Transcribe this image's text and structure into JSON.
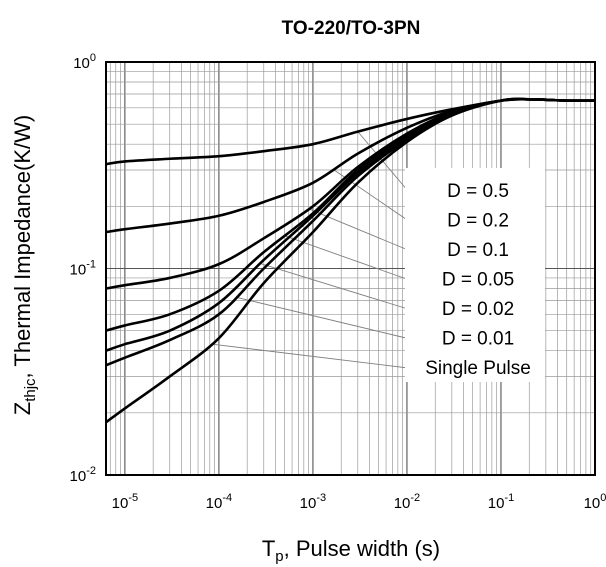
{
  "chart_data": {
    "type": "line",
    "title": "TO-220/TO-3PN",
    "ylabel": {
      "main": "Z",
      "sub": "thjc",
      "rest": ", Thermal Impedance(K/W)"
    },
    "xlabel": {
      "main": "T",
      "sub": "p",
      "rest": ", Pulse width (s)"
    },
    "x_scale": "log",
    "y_scale": "log",
    "xlim": [
      6.3e-06,
      1
    ],
    "ylim": [
      0.01,
      1
    ],
    "grid": true,
    "x_ticks": [
      {
        "value": 1e-05,
        "base": "10",
        "exp": "-5"
      },
      {
        "value": 0.0001,
        "base": "10",
        "exp": "-4"
      },
      {
        "value": 0.001,
        "base": "10",
        "exp": "-3"
      },
      {
        "value": 0.01,
        "base": "10",
        "exp": "-2"
      },
      {
        "value": 0.1,
        "base": "10",
        "exp": "-1"
      },
      {
        "value": 1,
        "base": "10",
        "exp": "0"
      }
    ],
    "y_ticks": [
      {
        "value": 0.01,
        "base": "10",
        "exp": "-2"
      },
      {
        "value": 0.1,
        "base": "10",
        "exp": "-1"
      },
      {
        "value": 1,
        "base": "10",
        "exp": "0"
      }
    ],
    "legend_placement": "right",
    "series": [
      {
        "name": "D = 0.5",
        "x": [
          6.3e-06,
          1e-05,
          3e-05,
          0.0001,
          0.0003,
          0.001,
          0.003,
          0.01,
          0.03,
          0.1,
          0.2,
          0.5,
          1
        ],
        "y": [
          0.32,
          0.33,
          0.34,
          0.35,
          0.37,
          0.4,
          0.46,
          0.53,
          0.59,
          0.65,
          0.66,
          0.65,
          0.65
        ]
      },
      {
        "name": "D = 0.2",
        "x": [
          6.3e-06,
          1e-05,
          3e-05,
          0.0001,
          0.0003,
          0.001,
          0.003,
          0.01,
          0.03,
          0.1,
          0.2,
          0.5,
          1
        ],
        "y": [
          0.15,
          0.155,
          0.165,
          0.18,
          0.21,
          0.26,
          0.36,
          0.48,
          0.58,
          0.65,
          0.66,
          0.65,
          0.65
        ]
      },
      {
        "name": "D = 0.1",
        "x": [
          6.3e-06,
          1e-05,
          3e-05,
          0.0001,
          0.0003,
          0.001,
          0.003,
          0.01,
          0.03,
          0.1,
          0.2,
          0.5,
          1
        ],
        "y": [
          0.08,
          0.083,
          0.09,
          0.105,
          0.14,
          0.2,
          0.31,
          0.45,
          0.57,
          0.65,
          0.66,
          0.65,
          0.65
        ]
      },
      {
        "name": "D = 0.05",
        "x": [
          6.3e-06,
          1e-05,
          3e-05,
          0.0001,
          0.0003,
          0.001,
          0.003,
          0.01,
          0.03,
          0.1,
          0.2,
          0.5,
          1
        ],
        "y": [
          0.05,
          0.053,
          0.06,
          0.078,
          0.12,
          0.185,
          0.3,
          0.44,
          0.57,
          0.65,
          0.66,
          0.65,
          0.65
        ]
      },
      {
        "name": "D = 0.02",
        "x": [
          6.3e-06,
          1e-05,
          3e-05,
          0.0001,
          0.0003,
          0.001,
          0.003,
          0.01,
          0.03,
          0.1,
          0.2,
          0.5,
          1
        ],
        "y": [
          0.04,
          0.043,
          0.05,
          0.068,
          0.11,
          0.18,
          0.29,
          0.43,
          0.56,
          0.65,
          0.66,
          0.65,
          0.65
        ]
      },
      {
        "name": "D = 0.01",
        "x": [
          6.3e-06,
          1e-05,
          3e-05,
          0.0001,
          0.0003,
          0.001,
          0.003,
          0.01,
          0.03,
          0.1,
          0.2,
          0.5,
          1
        ],
        "y": [
          0.034,
          0.037,
          0.045,
          0.06,
          0.1,
          0.17,
          0.28,
          0.42,
          0.56,
          0.65,
          0.66,
          0.65,
          0.65
        ]
      },
      {
        "name": "Single Pulse",
        "x": [
          6.3e-06,
          1e-05,
          3e-05,
          0.0001,
          0.0003,
          0.001,
          0.003,
          0.01,
          0.03,
          0.1,
          0.2,
          0.5,
          1
        ],
        "y": [
          0.018,
          0.021,
          0.03,
          0.046,
          0.085,
          0.15,
          0.26,
          0.41,
          0.55,
          0.65,
          0.66,
          0.65,
          0.65
        ]
      }
    ],
    "series_color": "#000000",
    "leader_color": "#808080"
  }
}
